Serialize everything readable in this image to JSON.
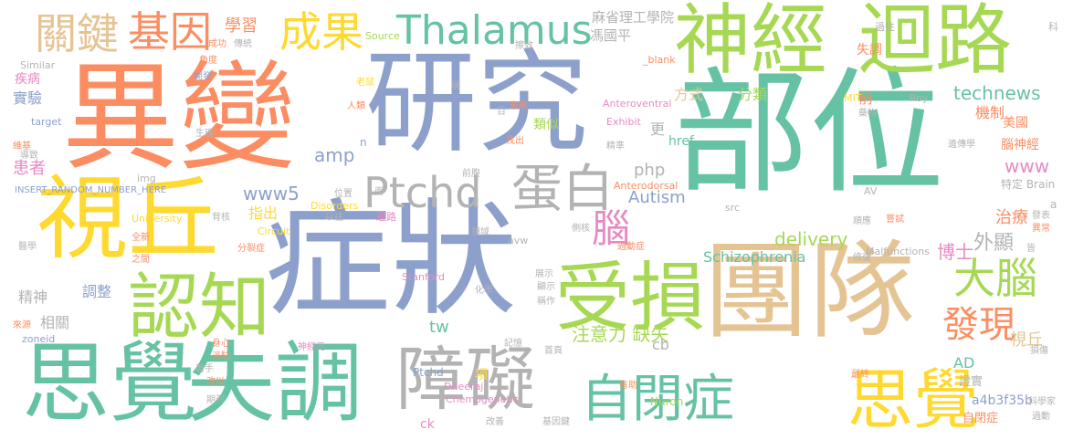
{
  "palette": {
    "orange": "#fc8d62",
    "blue": "#8da0cb",
    "teal": "#66c2a5",
    "green": "#a6d854",
    "yellow": "#ffd92f",
    "tan": "#e5c494",
    "pink": "#e78ac3",
    "gray": "#b3b3b3"
  },
  "words": {
    "w_bubian": "部位",
    "w_yibian": "異變",
    "w_yanjiu": "研究",
    "w_zhengzhuang": "症狀",
    "w_tuandui": "團隊",
    "w_shenjing": "神經",
    "w_huilu": "迴路",
    "w_shiqiu": "視丘",
    "w_sijue": "思覺",
    "w_shitiao": "失調",
    "w_renzhi": "認知",
    "w_shousun": "受損",
    "w_zhangai": "障礙",
    "w_zibizheng": "自閉症",
    "w_sijue2": "思覺",
    "w_ptchd": "Ptchd",
    "w_danbai": "蛋白",
    "w_thalamus": "Thalamus",
    "w_guanjian": "關鍵",
    "w_jiyin": "基因",
    "w_chengguo": "成果",
    "w_danao": "大腦",
    "w_faxian": "發現",
    "w_nao": "腦",
    "w_schizophrenia": "Schizophrenia",
    "w_delivery": "delivery",
    "w_autism": "Autism",
    "w_www5": "www5",
    "w_technews": "technews",
    "w_www": "www",
    "w_zhuyili": "注意力 缺失",
    "w_boshi": "博士",
    "w_waixian": "外顯",
    "w_zhiliao": "治療",
    "w_amp": "amp",
    "w_php": "php",
    "w_xuexi": "學習",
    "w_mashengli": "麻省理工學院",
    "w_fengguoping": "馮國平",
    "w_fenlei": "分類",
    "w_jizhi": "機制",
    "w_fangshi": "方式",
    "w_shiyan": "實驗",
    "w_jibing": "疾病",
    "w_huanzhe": "患者",
    "w_zhichu": "指出",
    "w_jingshen": "精神",
    "w_tiaozheng": "調整",
    "w_xiangguan": "相關",
    "w_leisi": "類似",
    "w_geng": "更",
    "w_qian": "前",
    "w_shitiao_s": "失調",
    "w_meiguo": "美國",
    "w_naoshenjing": "腦神經",
    "w_tedingbrain": "特定 Brain",
    "w_shiqiu_s": "視丘",
    "w_ad": "AD",
    "w_tw": "tw",
    "w_xiang": "項",
    "w_cb": "cb",
    "w_a4b": "a4b3f35b",
    "w_zibizheng_s": "自閉症",
    "w_zhengshi": "證實",
    "w_n": "n",
    "w_href": "href",
    "w_ptchd_s": "Ptchd",
    "w_ck": "ck",
    "w_nuron": "Nuron",
    "w_chemo": "Chemogenetic",
    "w_dheeraj": "Dheeraj",
    "w_stanford": "Stanford",
    "w_source": "Source",
    "w_similar": "Similar",
    "w_target": "target",
    "w_img": "img",
    "w_insert": "INSERT_RANDOM_NUMBER_HERE",
    "w_university": "University",
    "w_disorders": "Disorders",
    "w_circuit": "Circuit",
    "w_avw": "avw",
    "w_src": "src",
    "w_malfunctions": "Malfunctions",
    "w_av": "AV",
    "w_mit": "MIT",
    "w_roy": "Roy",
    "w_exhibit": "Exhibit",
    "w_anteroventral": "Anteroventral",
    "w_anterodorsal": "Anterodorsal",
    "w_blank": "_blank",
    "w_zoneid": "zoneid",
    "w_guowang": "過往",
    "w_ke": "科",
    "w_a": "a",
    "w_chenggong": "成功",
    "w_chuantong": "傳統",
    "w_jiaodu": "角度",
    "w_kaifa": "開發",
    "w_laoshu": "老鼠",
    "w_renlei": "人類",
    "w_shengli": "生理",
    "w_weiji": "維基",
    "w_daozhi": "導致",
    "w_chengxiao": "擦效",
    "w_cheng": "稱",
    "w_bai": "百",
    "w_weilai": "未來",
    "w_zhaochu": "找出",
    "w_jingzhun": "精準",
    "w_yaowu": "藥物",
    "w_yichuanxue": "遺傳學",
    "w_qianhe": "前腹",
    "w_weizhi": "位置",
    "w_liang": "兩",
    "w_yiwang": "以往",
    "w_huilu_s": "迴路",
    "w_lingyu": "領域",
    "w_cehe": "側核",
    "w_guodong": "過動症",
    "w_fenlie": "分裂症",
    "w_beihe": "背核",
    "w_quanxin": "全新",
    "w_zhijian": "之間",
    "w_yixue": "醫學",
    "w_laiyuan": "來源",
    "w_shenxin": "身心",
    "w_pailai": "派駐",
    "w_zhuoshou": "著手",
    "w_gaiyi": "改以",
    "w_qikan": "期刊",
    "w_shenjingyuan": "神經元",
    "w_jiyi": "記憶",
    "w_shouye": "首頁",
    "w_jiyinjian": "基因鍵",
    "w_gaishan": "改善",
    "w_youzhu": "有助",
    "w_huaxue": "化學",
    "w_zhanshi": "展示",
    "w_xianshi": "顯示",
    "w_chengzuo": "稱作",
    "w_shundeng": "順應",
    "w_xiufu": "修復",
    "w_changshi": "嘗試",
    "w_fabiao": "發表",
    "w_yichang": "異常",
    "w_jie": "皆",
    "w_sunshang": "損傷",
    "w_zuizhong": "最終",
    "w_kexuejia": "科學家",
    "w_guodong2": "過動"
  }
}
